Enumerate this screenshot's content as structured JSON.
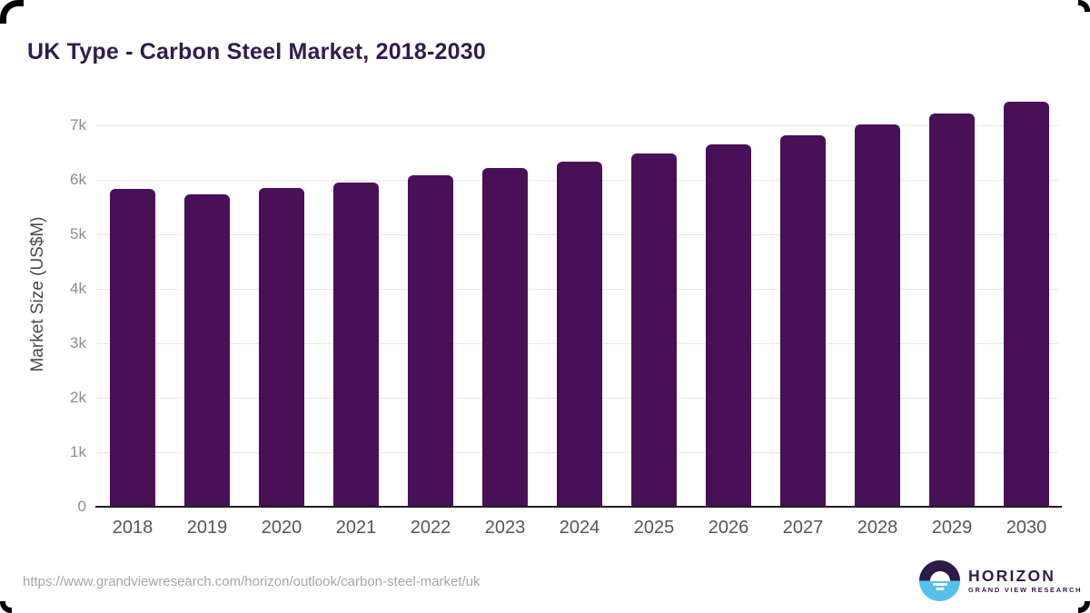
{
  "title": "UK Type - Carbon Steel Market, 2018-2030",
  "source_url": "https://www.grandviewresearch.com/horizon/outlook/carbon-steel-market/uk",
  "logo": {
    "name": "HORIZON",
    "subtitle": "GRAND VIEW RESEARCH"
  },
  "colors": {
    "bar": "#481157",
    "title": "#321b4e",
    "axis_label": "#4a4a4a",
    "tick": "#8c8c8c",
    "year": "#555555",
    "gridline": "#e8e8e8",
    "axis_line": "#1f1f1f",
    "url": "#a6a6a6",
    "logo_purple": "#2e1a47",
    "logo_blue": "#56c1e8"
  },
  "chart_data": {
    "type": "bar",
    "title": "UK Type - Carbon Steel Market, 2018-2030",
    "xlabel": "",
    "ylabel": "Market Size (US$M)",
    "categories": [
      "2018",
      "2019",
      "2020",
      "2021",
      "2022",
      "2023",
      "2024",
      "2025",
      "2026",
      "2027",
      "2028",
      "2029",
      "2030"
    ],
    "values": [
      5830,
      5740,
      5850,
      5950,
      6080,
      6210,
      6340,
      6480,
      6650,
      6820,
      7010,
      7210,
      7430
    ],
    "ylim": [
      0,
      7500
    ],
    "yticks_values": [
      0,
      1000,
      2000,
      3000,
      4000,
      5000,
      6000,
      7000
    ],
    "yticks_labels": [
      "0",
      "1k",
      "2k",
      "3k",
      "4k",
      "5k",
      "6k",
      "7k"
    ],
    "grid": true,
    "legend": false,
    "bar_color": "#481157"
  }
}
